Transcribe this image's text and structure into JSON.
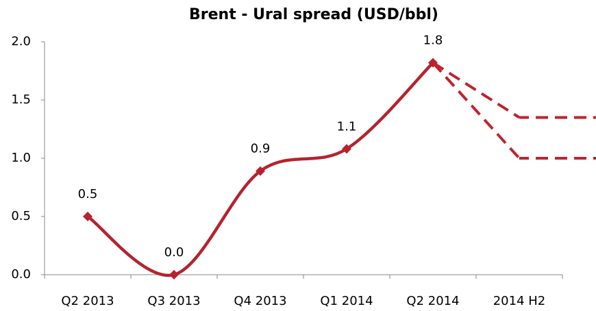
{
  "chart_data": {
    "type": "line",
    "title": "Brent - Ural spread (USD/bbl)",
    "categories": [
      "Q2 2013",
      "Q3 2013",
      "Q4 2013",
      "Q1 2014",
      "Q2 2014",
      "2014 H2"
    ],
    "series": [
      {
        "color": "#b5232e",
        "values": [
          0.5,
          0.0,
          0.89,
          1.08,
          1.82,
          null
        ],
        "value_labels": [
          "0.5",
          "0.0",
          "0.9",
          "1.1",
          "1.8",
          null
        ],
        "dashed": false,
        "markers": true
      },
      {
        "color": "#c0232c",
        "values": [
          null,
          null,
          null,
          null,
          1.82,
          1.35
        ],
        "dashed": true,
        "markers": false
      },
      {
        "color": "#c0232c",
        "values": [
          null,
          null,
          null,
          null,
          1.82,
          1.0
        ],
        "dashed": true,
        "markers": false
      }
    ],
    "ylim": [
      0,
      2
    ],
    "yticks": [
      {
        "value": 0,
        "label": "0.0"
      },
      0.5,
      {
        "value": 1,
        "label": "1.0"
      },
      1.5,
      {
        "value": 2,
        "label": "2.0"
      }
    ],
    "grid": false
  }
}
